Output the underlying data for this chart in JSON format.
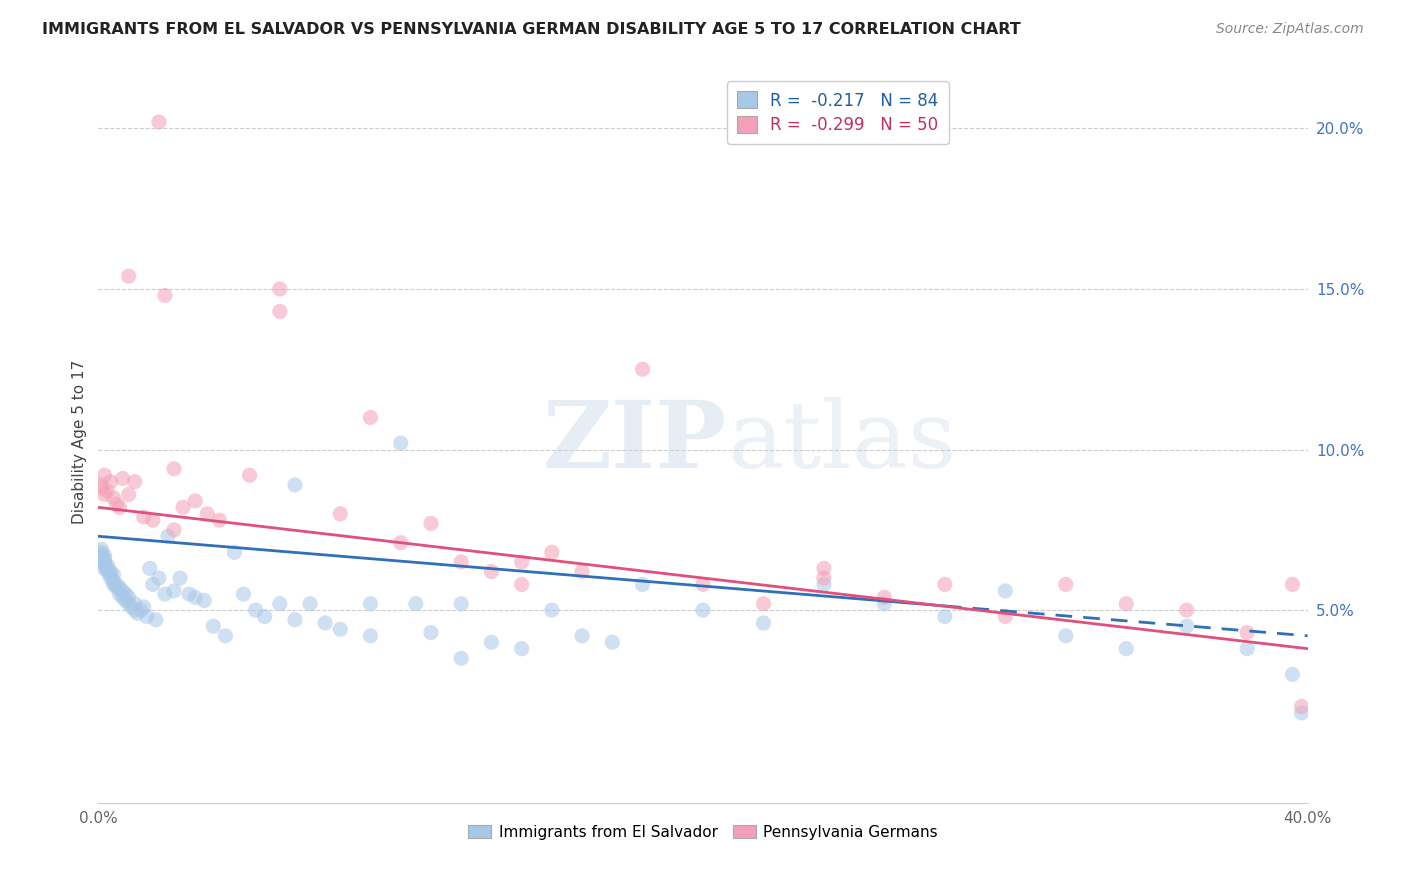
{
  "title": "IMMIGRANTS FROM EL SALVADOR VS PENNSYLVANIA GERMAN DISABILITY AGE 5 TO 17 CORRELATION CHART",
  "source": "Source: ZipAtlas.com",
  "ylabel": "Disability Age 5 to 17",
  "xlim": [
    0.0,
    0.4
  ],
  "ylim": [
    -0.01,
    0.215
  ],
  "legend1_label": "R =  -0.217   N = 84",
  "legend2_label": "R =  -0.299   N = 50",
  "legend1_color": "#a8c8e8",
  "legend2_color": "#f4a0b8",
  "watermark_zip": "ZIP",
  "watermark_atlas": "atlas",
  "blue_line_x0": 0.0,
  "blue_line_y0": 0.073,
  "blue_line_x1": 0.4,
  "blue_line_y1": 0.042,
  "blue_line_solid_end": 0.28,
  "pink_line_x0": 0.0,
  "pink_line_y0": 0.082,
  "pink_line_x1": 0.4,
  "pink_line_y1": 0.038,
  "blue_line_color": "#3070b8",
  "pink_line_color": "#e0507a",
  "scatter_alpha": 0.55,
  "scatter_size": 120,
  "blue_scatter_x": [
    0.001,
    0.001,
    0.001,
    0.001,
    0.001,
    0.002,
    0.002,
    0.002,
    0.002,
    0.002,
    0.003,
    0.003,
    0.003,
    0.004,
    0.004,
    0.004,
    0.005,
    0.005,
    0.005,
    0.006,
    0.006,
    0.007,
    0.007,
    0.008,
    0.008,
    0.009,
    0.009,
    0.01,
    0.01,
    0.011,
    0.012,
    0.012,
    0.013,
    0.014,
    0.015,
    0.016,
    0.017,
    0.018,
    0.019,
    0.02,
    0.022,
    0.023,
    0.025,
    0.027,
    0.03,
    0.032,
    0.035,
    0.038,
    0.042,
    0.045,
    0.048,
    0.052,
    0.055,
    0.06,
    0.065,
    0.07,
    0.075,
    0.08,
    0.09,
    0.1,
    0.11,
    0.12,
    0.13,
    0.14,
    0.15,
    0.16,
    0.17,
    0.18,
    0.2,
    0.22,
    0.24,
    0.26,
    0.28,
    0.3,
    0.32,
    0.34,
    0.36,
    0.38,
    0.395,
    0.398,
    0.065,
    0.09,
    0.105,
    0.12
  ],
  "blue_scatter_y": [
    0.065,
    0.066,
    0.067,
    0.068,
    0.069,
    0.063,
    0.064,
    0.065,
    0.066,
    0.067,
    0.062,
    0.063,
    0.064,
    0.06,
    0.061,
    0.062,
    0.058,
    0.059,
    0.061,
    0.057,
    0.058,
    0.055,
    0.057,
    0.054,
    0.056,
    0.053,
    0.055,
    0.052,
    0.054,
    0.051,
    0.05,
    0.052,
    0.049,
    0.05,
    0.051,
    0.048,
    0.063,
    0.058,
    0.047,
    0.06,
    0.055,
    0.073,
    0.056,
    0.06,
    0.055,
    0.054,
    0.053,
    0.045,
    0.042,
    0.068,
    0.055,
    0.05,
    0.048,
    0.052,
    0.047,
    0.052,
    0.046,
    0.044,
    0.042,
    0.102,
    0.043,
    0.052,
    0.04,
    0.038,
    0.05,
    0.042,
    0.04,
    0.058,
    0.05,
    0.046,
    0.058,
    0.052,
    0.048,
    0.056,
    0.042,
    0.038,
    0.045,
    0.038,
    0.03,
    0.018,
    0.089,
    0.052,
    0.052,
    0.035
  ],
  "pink_scatter_x": [
    0.001,
    0.001,
    0.002,
    0.002,
    0.003,
    0.004,
    0.005,
    0.006,
    0.007,
    0.008,
    0.01,
    0.012,
    0.015,
    0.018,
    0.02,
    0.022,
    0.025,
    0.028,
    0.032,
    0.036,
    0.04,
    0.05,
    0.06,
    0.08,
    0.1,
    0.11,
    0.12,
    0.13,
    0.14,
    0.15,
    0.16,
    0.18,
    0.2,
    0.22,
    0.24,
    0.26,
    0.28,
    0.3,
    0.32,
    0.34,
    0.36,
    0.38,
    0.395,
    0.398,
    0.01,
    0.025,
    0.06,
    0.09,
    0.14,
    0.24
  ],
  "pink_scatter_y": [
    0.089,
    0.088,
    0.086,
    0.092,
    0.087,
    0.09,
    0.085,
    0.083,
    0.082,
    0.091,
    0.086,
    0.09,
    0.079,
    0.078,
    0.202,
    0.148,
    0.075,
    0.082,
    0.084,
    0.08,
    0.078,
    0.092,
    0.143,
    0.08,
    0.071,
    0.077,
    0.065,
    0.062,
    0.065,
    0.068,
    0.062,
    0.125,
    0.058,
    0.052,
    0.06,
    0.054,
    0.058,
    0.048,
    0.058,
    0.052,
    0.05,
    0.043,
    0.058,
    0.02,
    0.154,
    0.094,
    0.15,
    0.11,
    0.058,
    0.063
  ]
}
